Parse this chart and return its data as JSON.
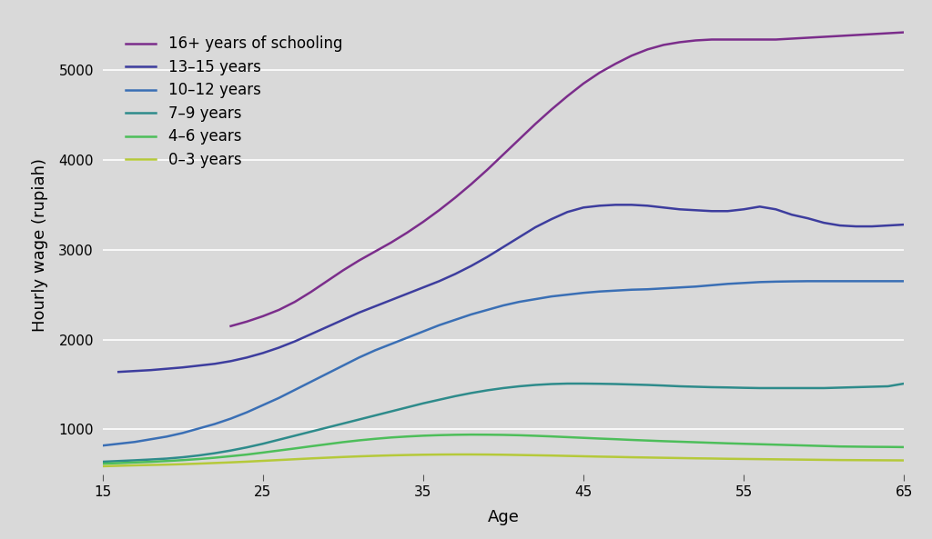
{
  "xlabel": "Age",
  "ylabel": "Hourly wage (rupiah)",
  "background_color": "#d9d9d9",
  "xlim": [
    15,
    65
  ],
  "ylim": [
    500,
    5600
  ],
  "yticks": [
    1000,
    2000,
    3000,
    4000,
    5000
  ],
  "xticks": [
    15,
    25,
    35,
    45,
    55,
    65
  ],
  "series": [
    {
      "label": "16+ years of schooling",
      "color": "#7b2d8b",
      "ages": [
        15,
        16,
        17,
        18,
        19,
        20,
        21,
        22,
        23,
        24,
        25,
        26,
        27,
        28,
        29,
        30,
        31,
        32,
        33,
        34,
        35,
        36,
        37,
        38,
        39,
        40,
        41,
        42,
        43,
        44,
        45,
        46,
        47,
        48,
        49,
        50,
        51,
        52,
        53,
        54,
        55,
        56,
        57,
        58,
        59,
        60,
        61,
        62,
        63,
        64,
        65
      ],
      "wages": [
        null,
        null,
        null,
        null,
        null,
        null,
        null,
        null,
        2150,
        2200,
        2260,
        2330,
        2420,
        2530,
        2650,
        2770,
        2880,
        2980,
        3080,
        3190,
        3310,
        3440,
        3580,
        3730,
        3890,
        4060,
        4230,
        4400,
        4560,
        4710,
        4850,
        4970,
        5070,
        5160,
        5230,
        5280,
        5310,
        5330,
        5340,
        5340,
        5340,
        5340,
        5340,
        5350,
        5360,
        5370,
        5380,
        5390,
        5400,
        5410,
        5420
      ]
    },
    {
      "label": "13–15 years",
      "color": "#3d3d9e",
      "ages": [
        15,
        16,
        17,
        18,
        19,
        20,
        21,
        22,
        23,
        24,
        25,
        26,
        27,
        28,
        29,
        30,
        31,
        32,
        33,
        34,
        35,
        36,
        37,
        38,
        39,
        40,
        41,
        42,
        43,
        44,
        45,
        46,
        47,
        48,
        49,
        50,
        51,
        52,
        53,
        54,
        55,
        56,
        57,
        58,
        59,
        60,
        61,
        62,
        63,
        64,
        65
      ],
      "wages": [
        null,
        1640,
        1650,
        1660,
        1675,
        1690,
        1710,
        1730,
        1760,
        1800,
        1850,
        1910,
        1980,
        2060,
        2140,
        2220,
        2300,
        2370,
        2440,
        2510,
        2580,
        2650,
        2730,
        2820,
        2920,
        3030,
        3140,
        3250,
        3340,
        3420,
        3470,
        3490,
        3500,
        3500,
        3490,
        3470,
        3450,
        3440,
        3430,
        3430,
        3450,
        3480,
        3450,
        3390,
        3350,
        3300,
        3270,
        3260,
        3260,
        3270,
        3280
      ]
    },
    {
      "label": "10–12 years",
      "color": "#3a6fb5",
      "ages": [
        15,
        16,
        17,
        18,
        19,
        20,
        21,
        22,
        23,
        24,
        25,
        26,
        27,
        28,
        29,
        30,
        31,
        32,
        33,
        34,
        35,
        36,
        37,
        38,
        39,
        40,
        41,
        42,
        43,
        44,
        45,
        46,
        47,
        48,
        49,
        50,
        51,
        52,
        53,
        54,
        55,
        56,
        57,
        58,
        59,
        60,
        61,
        62,
        63,
        64,
        65
      ],
      "wages": [
        820,
        840,
        860,
        890,
        920,
        960,
        1010,
        1060,
        1120,
        1190,
        1270,
        1350,
        1440,
        1530,
        1620,
        1710,
        1800,
        1880,
        1950,
        2020,
        2090,
        2160,
        2220,
        2280,
        2330,
        2380,
        2420,
        2450,
        2480,
        2500,
        2520,
        2535,
        2545,
        2555,
        2560,
        2570,
        2580,
        2590,
        2605,
        2620,
        2630,
        2640,
        2645,
        2648,
        2650,
        2650,
        2650,
        2650,
        2650,
        2650,
        2650
      ]
    },
    {
      "label": "7–9 years",
      "color": "#2e8b8b",
      "ages": [
        15,
        16,
        17,
        18,
        19,
        20,
        21,
        22,
        23,
        24,
        25,
        26,
        27,
        28,
        29,
        30,
        31,
        32,
        33,
        34,
        35,
        36,
        37,
        38,
        39,
        40,
        41,
        42,
        43,
        44,
        45,
        46,
        47,
        48,
        49,
        50,
        51,
        52,
        53,
        54,
        55,
        56,
        57,
        58,
        59,
        60,
        61,
        62,
        63,
        64,
        65
      ],
      "wages": [
        640,
        648,
        656,
        665,
        675,
        690,
        710,
        735,
        765,
        800,
        840,
        885,
        930,
        975,
        1020,
        1065,
        1110,
        1155,
        1200,
        1245,
        1290,
        1330,
        1370,
        1405,
        1435,
        1460,
        1480,
        1495,
        1505,
        1510,
        1510,
        1508,
        1505,
        1500,
        1495,
        1488,
        1480,
        1475,
        1470,
        1467,
        1463,
        1460,
        1460,
        1460,
        1460,
        1460,
        1465,
        1470,
        1475,
        1480,
        1510
      ]
    },
    {
      "label": "4–6 years",
      "color": "#4dbe5a",
      "ages": [
        15,
        16,
        17,
        18,
        19,
        20,
        21,
        22,
        23,
        24,
        25,
        26,
        27,
        28,
        29,
        30,
        31,
        32,
        33,
        34,
        35,
        36,
        37,
        38,
        39,
        40,
        41,
        42,
        43,
        44,
        45,
        46,
        47,
        48,
        49,
        50,
        51,
        52,
        53,
        54,
        55,
        56,
        57,
        58,
        59,
        60,
        61,
        62,
        63,
        64,
        65
      ],
      "wages": [
        618,
        625,
        632,
        639,
        648,
        658,
        670,
        685,
        702,
        720,
        742,
        765,
        788,
        812,
        835,
        858,
        878,
        895,
        910,
        921,
        930,
        936,
        940,
        942,
        941,
        939,
        935,
        929,
        922,
        914,
        906,
        898,
        891,
        883,
        876,
        869,
        863,
        857,
        851,
        845,
        840,
        835,
        830,
        825,
        820,
        815,
        810,
        808,
        806,
        805,
        803
      ]
    },
    {
      "label": "0–3 years",
      "color": "#b5c93a",
      "ages": [
        15,
        16,
        17,
        18,
        19,
        20,
        21,
        22,
        23,
        24,
        25,
        26,
        27,
        28,
        29,
        30,
        31,
        32,
        33,
        34,
        35,
        36,
        37,
        38,
        39,
        40,
        41,
        42,
        43,
        44,
        45,
        46,
        47,
        48,
        49,
        50,
        51,
        52,
        53,
        54,
        55,
        56,
        57,
        58,
        59,
        60,
        61,
        62,
        63,
        64,
        65
      ],
      "wages": [
        590,
        595,
        600,
        604,
        608,
        613,
        619,
        626,
        633,
        641,
        650,
        659,
        668,
        677,
        685,
        693,
        700,
        706,
        711,
        715,
        718,
        720,
        721,
        721,
        720,
        718,
        715,
        712,
        709,
        705,
        701,
        697,
        694,
        690,
        687,
        684,
        681,
        678,
        676,
        673,
        671,
        669,
        667,
        665,
        663,
        661,
        659,
        658,
        657,
        656,
        655
      ]
    }
  ]
}
